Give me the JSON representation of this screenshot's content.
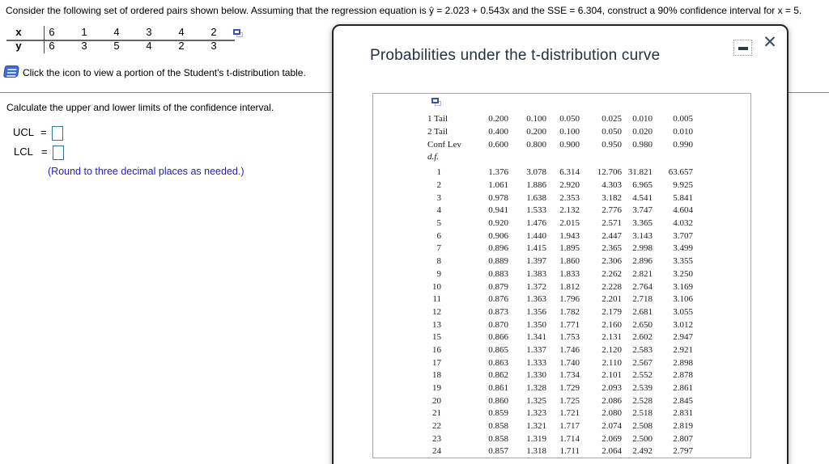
{
  "problem": {
    "statement": "Consider the following set of ordered pairs shown below. Assuming that the regression equation is ŷ = 2.023 + 0.543x and the SSE = 6.304, construct a 90% confidence interval for x = 5.",
    "pairs": {
      "rows": [
        {
          "label": "x",
          "values": [
            "6",
            "1",
            "4",
            "3",
            "4",
            "2"
          ]
        },
        {
          "label": "y",
          "values": [
            "6",
            "3",
            "5",
            "4",
            "2",
            "3"
          ]
        }
      ]
    },
    "click_note": "Click the icon to view a portion of the Student's t-distribution table.",
    "task": "Calculate the upper and lower limits of the confidence interval.",
    "ucl_label": "UCL",
    "lcl_label": "LCL",
    "equals": "=",
    "ucl_value": "",
    "lcl_value": "",
    "round_note": "(Round to three decimal places as needed.)"
  },
  "dialog": {
    "title": "Probabilities under the t-distribution curve",
    "close_glyph": "✕",
    "minimize_icon": "minimize-dash",
    "ttable": {
      "header_rows": [
        {
          "label": "1 Tail",
          "values": [
            "0.200",
            "0.100",
            "0.050",
            "0.025",
            "0.010",
            "0.005"
          ]
        },
        {
          "label": "2 Tail",
          "values": [
            "0.400",
            "0.200",
            "0.100",
            "0.050",
            "0.020",
            "0.010"
          ]
        },
        {
          "label": "Conf Lev",
          "values": [
            "0.600",
            "0.800",
            "0.900",
            "0.950",
            "0.980",
            "0.990"
          ]
        }
      ],
      "df_label": "d.f.",
      "rows": [
        {
          "df": "1",
          "values": [
            "1.376",
            "3.078",
            "6.314",
            "12.706",
            "31.821",
            "63.657"
          ]
        },
        {
          "df": "2",
          "values": [
            "1.061",
            "1.886",
            "2.920",
            "4.303",
            "6.965",
            "9.925"
          ]
        },
        {
          "df": "3",
          "values": [
            "0.978",
            "1.638",
            "2.353",
            "3.182",
            "4.541",
            "5.841"
          ]
        },
        {
          "df": "4",
          "values": [
            "0.941",
            "1.533",
            "2.132",
            "2.776",
            "3.747",
            "4.604"
          ]
        },
        {
          "df": "5",
          "values": [
            "0.920",
            "1.476",
            "2.015",
            "2.571",
            "3.365",
            "4.032"
          ]
        },
        {
          "df": "6",
          "values": [
            "0.906",
            "1.440",
            "1.943",
            "2.447",
            "3.143",
            "3.707"
          ]
        },
        {
          "df": "7",
          "values": [
            "0.896",
            "1.415",
            "1.895",
            "2.365",
            "2.998",
            "3.499"
          ]
        },
        {
          "df": "8",
          "values": [
            "0.889",
            "1.397",
            "1.860",
            "2.306",
            "2.896",
            "3.355"
          ]
        },
        {
          "df": "9",
          "values": [
            "0.883",
            "1.383",
            "1.833",
            "2.262",
            "2.821",
            "3.250"
          ]
        },
        {
          "df": "10",
          "values": [
            "0.879",
            "1.372",
            "1.812",
            "2.228",
            "2.764",
            "3.169"
          ]
        },
        {
          "df": "11",
          "values": [
            "0.876",
            "1.363",
            "1.796",
            "2.201",
            "2.718",
            "3.106"
          ]
        },
        {
          "df": "12",
          "values": [
            "0.873",
            "1.356",
            "1.782",
            "2.179",
            "2.681",
            "3.055"
          ]
        },
        {
          "df": "13",
          "values": [
            "0.870",
            "1.350",
            "1.771",
            "2.160",
            "2.650",
            "3.012"
          ]
        },
        {
          "df": "15",
          "values": [
            "0.866",
            "1.341",
            "1.753",
            "2.131",
            "2.602",
            "2.947"
          ]
        },
        {
          "df": "16",
          "values": [
            "0.865",
            "1.337",
            "1.746",
            "2.120",
            "2.583",
            "2.921"
          ]
        },
        {
          "df": "17",
          "values": [
            "0.863",
            "1.333",
            "1.740",
            "2.110",
            "2.567",
            "2.898"
          ]
        },
        {
          "df": "18",
          "values": [
            "0.862",
            "1.330",
            "1.734",
            "2.101",
            "2.552",
            "2.878"
          ]
        },
        {
          "df": "19",
          "values": [
            "0.861",
            "1.328",
            "1.729",
            "2.093",
            "2.539",
            "2.861"
          ]
        },
        {
          "df": "20",
          "values": [
            "0.860",
            "1.325",
            "1.725",
            "2.086",
            "2.528",
            "2.845"
          ]
        },
        {
          "df": "21",
          "values": [
            "0.859",
            "1.323",
            "1.721",
            "2.080",
            "2.518",
            "2.831"
          ]
        },
        {
          "df": "22",
          "values": [
            "0.858",
            "1.321",
            "1.717",
            "2.074",
            "2.508",
            "2.819"
          ]
        },
        {
          "df": "23",
          "values": [
            "0.858",
            "1.319",
            "1.714",
            "2.069",
            "2.500",
            "2.807"
          ]
        },
        {
          "df": "24",
          "values": [
            "0.857",
            "1.318",
            "1.711",
            "2.064",
            "2.492",
            "2.797"
          ]
        }
      ]
    }
  }
}
